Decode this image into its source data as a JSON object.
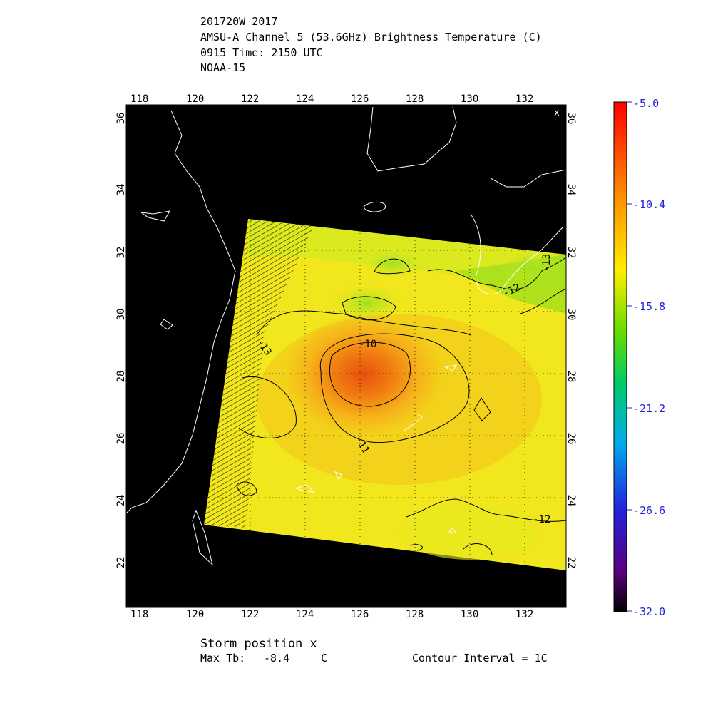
{
  "header": {
    "line1": "201720W 2017",
    "line2": "AMSU-A Channel 5 (53.6GHz) Brightness Temperature (C)",
    "line3": "0915 Time: 2150 UTC",
    "line4": "NOAA-15"
  },
  "map": {
    "lon_labels": [
      "118",
      "120",
      "122",
      "124",
      "126",
      "128",
      "130",
      "132"
    ],
    "lat_labels": [
      "22",
      "24",
      "26",
      "28",
      "30",
      "32",
      "34",
      "36"
    ],
    "lon_range": [
      117,
      134
    ],
    "lat_range": [
      20.6,
      36.9
    ],
    "background": "#000000",
    "coastline_color": "#ffffff",
    "grid_style": "dotted",
    "storm_marker": "x",
    "contour_labels": [
      "-10",
      "-11",
      "-12",
      "-12",
      "-13",
      "-13",
      "-12"
    ]
  },
  "colorbar": {
    "labels": [
      "-5.0",
      "-10.4",
      "-15.8",
      "-21.2",
      "-26.6",
      "-32.0"
    ],
    "min": -32.0,
    "max": -5.0,
    "label_color": "#2222dd"
  },
  "footer": {
    "storm_position": "Storm position x",
    "max_tb_label": "Max Tb:",
    "max_tb_value": "-8.4",
    "max_tb_unit": "C",
    "contour_interval": "Contour Interval = 1C"
  }
}
